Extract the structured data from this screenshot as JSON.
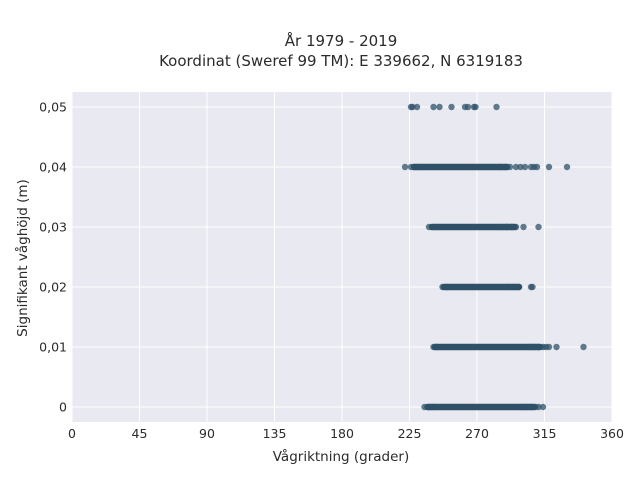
{
  "chart_data": {
    "type": "scatter",
    "title_line1": "År 1979 - 2019",
    "title_line2": "Koordinat (Sweref 99 TM): E 339662, N 6319183",
    "xlabel": "Vågriktning (grader)",
    "ylabel": "Signifikant våghöjd (m)",
    "xlim": [
      0,
      360
    ],
    "ylim": [
      -0.0025,
      0.0525
    ],
    "xticks": [
      0,
      45,
      90,
      135,
      180,
      225,
      270,
      315,
      360
    ],
    "xtick_labels": [
      "0",
      "45",
      "90",
      "135",
      "180",
      "225",
      "270",
      "315",
      "360"
    ],
    "yticks": [
      0,
      0.01,
      0.02,
      0.03,
      0.04,
      0.05
    ],
    "ytick_labels": [
      "0",
      "0,01",
      "0,02",
      "0,03",
      "0,04",
      "0,05"
    ],
    "grid": true,
    "marker_color": "#2f5168",
    "plot_background": "#e8e9f1",
    "dense_bands": [
      {
        "y": 0,
        "x_start": 237,
        "x_end": 308
      },
      {
        "y": 0.01,
        "x_start": 242,
        "x_end": 312
      },
      {
        "y": 0.02,
        "x_start": 248,
        "x_end": 298
      },
      {
        "y": 0.03,
        "x_start": 240,
        "x_end": 295
      },
      {
        "y": 0.04,
        "x_start": 228,
        "x_end": 290
      }
    ],
    "points": [
      {
        "x": 235,
        "y": 0
      },
      {
        "x": 238,
        "y": 0
      },
      {
        "x": 241,
        "y": 0
      },
      {
        "x": 300,
        "y": 0
      },
      {
        "x": 303,
        "y": 0
      },
      {
        "x": 306,
        "y": 0
      },
      {
        "x": 309,
        "y": 0
      },
      {
        "x": 311,
        "y": 0
      },
      {
        "x": 314,
        "y": 0
      },
      {
        "x": 241,
        "y": 0.01
      },
      {
        "x": 243,
        "y": 0.01
      },
      {
        "x": 305,
        "y": 0.01
      },
      {
        "x": 308,
        "y": 0.01
      },
      {
        "x": 311,
        "y": 0.01
      },
      {
        "x": 314,
        "y": 0.01
      },
      {
        "x": 316,
        "y": 0.01
      },
      {
        "x": 318,
        "y": 0.01
      },
      {
        "x": 323,
        "y": 0.01
      },
      {
        "x": 341,
        "y": 0.01
      },
      {
        "x": 247,
        "y": 0.02
      },
      {
        "x": 250,
        "y": 0.02
      },
      {
        "x": 290,
        "y": 0.02
      },
      {
        "x": 294,
        "y": 0.02
      },
      {
        "x": 298,
        "y": 0.02
      },
      {
        "x": 306,
        "y": 0.02
      },
      {
        "x": 307,
        "y": 0.02
      },
      {
        "x": 238,
        "y": 0.03
      },
      {
        "x": 240,
        "y": 0.03
      },
      {
        "x": 286,
        "y": 0.03
      },
      {
        "x": 290,
        "y": 0.03
      },
      {
        "x": 293,
        "y": 0.03
      },
      {
        "x": 296,
        "y": 0.03
      },
      {
        "x": 301,
        "y": 0.03
      },
      {
        "x": 311,
        "y": 0.03
      },
      {
        "x": 222,
        "y": 0.04
      },
      {
        "x": 226,
        "y": 0.04
      },
      {
        "x": 228,
        "y": 0.04
      },
      {
        "x": 231,
        "y": 0.04
      },
      {
        "x": 285,
        "y": 0.04
      },
      {
        "x": 289,
        "y": 0.04
      },
      {
        "x": 292,
        "y": 0.04
      },
      {
        "x": 296,
        "y": 0.04
      },
      {
        "x": 299,
        "y": 0.04
      },
      {
        "x": 302,
        "y": 0.04
      },
      {
        "x": 306,
        "y": 0.04
      },
      {
        "x": 308,
        "y": 0.04
      },
      {
        "x": 310,
        "y": 0.04
      },
      {
        "x": 318,
        "y": 0.04
      },
      {
        "x": 330,
        "y": 0.04
      },
      {
        "x": 226,
        "y": 0.05
      },
      {
        "x": 227,
        "y": 0.05
      },
      {
        "x": 230,
        "y": 0.05
      },
      {
        "x": 241,
        "y": 0.05
      },
      {
        "x": 245,
        "y": 0.05
      },
      {
        "x": 253,
        "y": 0.05
      },
      {
        "x": 262,
        "y": 0.05
      },
      {
        "x": 264,
        "y": 0.05
      },
      {
        "x": 268,
        "y": 0.05
      },
      {
        "x": 269,
        "y": 0.05
      },
      {
        "x": 283,
        "y": 0.05
      }
    ]
  }
}
